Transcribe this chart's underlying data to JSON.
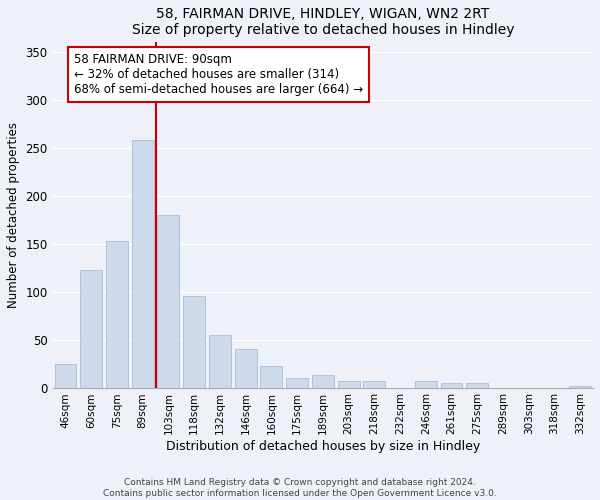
{
  "title": "58, FAIRMAN DRIVE, HINDLEY, WIGAN, WN2 2RT",
  "subtitle": "Size of property relative to detached houses in Hindley",
  "xlabel": "Distribution of detached houses by size in Hindley",
  "ylabel": "Number of detached properties",
  "bar_labels": [
    "46sqm",
    "60sqm",
    "75sqm",
    "89sqm",
    "103sqm",
    "118sqm",
    "132sqm",
    "146sqm",
    "160sqm",
    "175sqm",
    "189sqm",
    "203sqm",
    "218sqm",
    "232sqm",
    "246sqm",
    "261sqm",
    "275sqm",
    "289sqm",
    "303sqm",
    "318sqm",
    "332sqm"
  ],
  "bar_heights": [
    25,
    123,
    153,
    258,
    180,
    95,
    55,
    40,
    22,
    10,
    13,
    7,
    7,
    0,
    7,
    5,
    5,
    0,
    0,
    0,
    2
  ],
  "bar_color": "#ccdaeb",
  "bar_edge_color": "#a8bedb",
  "vline_color": "#cc0000",
  "annotation_title": "58 FAIRMAN DRIVE: 90sqm",
  "annotation_line1": "← 32% of detached houses are smaller (314)",
  "annotation_line2": "68% of semi-detached houses are larger (664) →",
  "ylim": [
    0,
    360
  ],
  "yticks": [
    0,
    50,
    100,
    150,
    200,
    250,
    300,
    350
  ],
  "footer_line1": "Contains HM Land Registry data © Crown copyright and database right 2024.",
  "footer_line2": "Contains public sector information licensed under the Open Government Licence v3.0.",
  "bg_color": "#eef2f8",
  "plot_bg_color": "#eef2f8",
  "grid_color": "#ffffff"
}
